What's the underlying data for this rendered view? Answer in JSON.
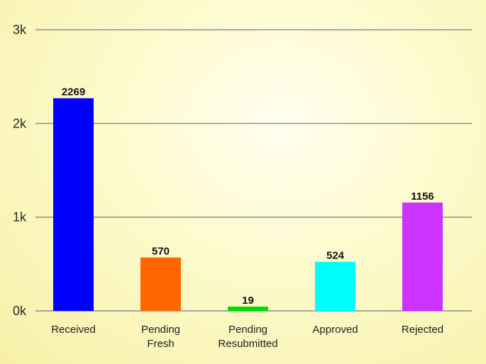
{
  "chart_data": {
    "type": "bar",
    "categories": [
      "Received",
      "Pending Fresh",
      "Pending Resubmitted",
      "Approved",
      "Rejected"
    ],
    "category_label_lines": [
      [
        "Received"
      ],
      [
        "Pending",
        "Fresh"
      ],
      [
        "Pending",
        "Resubmitted"
      ],
      [
        "Approved"
      ],
      [
        "Rejected"
      ]
    ],
    "values": [
      2269,
      570,
      19,
      524,
      1156
    ],
    "data_labels": [
      "2269",
      "570",
      "19",
      "524",
      "1156"
    ],
    "bar_colors": [
      "#0000ff",
      "#ff6600",
      "#00dd00",
      "#00ffff",
      "#cc33ff"
    ],
    "title": "",
    "xlabel": "",
    "ylabel": "",
    "ylim": [
      0,
      3000
    ],
    "y_ticks": [
      0,
      1000,
      2000,
      3000
    ],
    "y_tick_labels": [
      "0k",
      "1k",
      "2k",
      "3k"
    ],
    "grid": true,
    "legend": "none"
  }
}
